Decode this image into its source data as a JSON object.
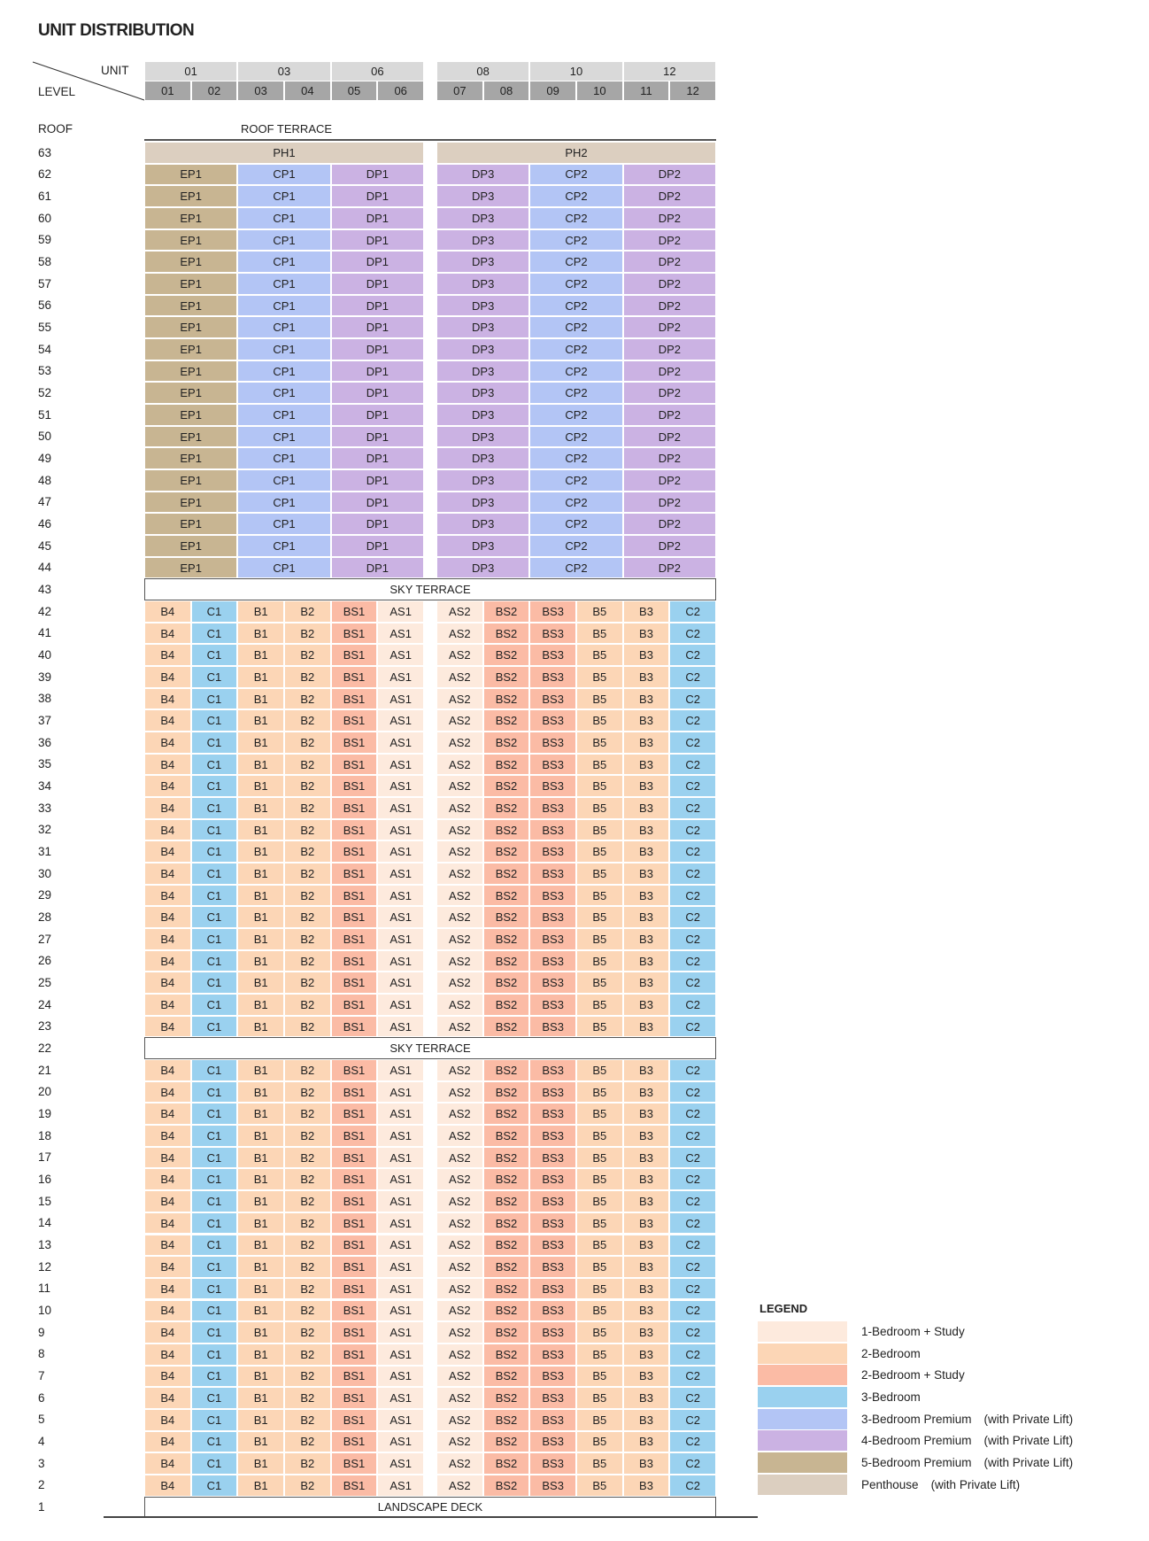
{
  "title": "UNIT DISTRIBUTION",
  "header": {
    "unit_label": "UNIT",
    "level_label": "LEVEL",
    "groups": [
      "01",
      "03",
      "06",
      "08",
      "10",
      "12"
    ],
    "units": [
      "01",
      "02",
      "03",
      "04",
      "05",
      "06",
      "07",
      "08",
      "09",
      "10",
      "11",
      "12"
    ]
  },
  "roof": {
    "level": "ROOF",
    "label": "ROOF TERRACE"
  },
  "penthouse": {
    "level": "63",
    "units": [
      {
        "label": "PH1",
        "type": "penthouse"
      },
      {
        "label": "PH2",
        "type": "penthouse"
      }
    ]
  },
  "upper": {
    "levels": [
      "62",
      "61",
      "60",
      "59",
      "58",
      "57",
      "56",
      "55",
      "54",
      "53",
      "52",
      "51",
      "50",
      "49",
      "48",
      "47",
      "46",
      "45",
      "44"
    ],
    "units": [
      {
        "label": "EP1",
        "type": "bed5p"
      },
      {
        "label": "CP1",
        "type": "bed3p"
      },
      {
        "label": "DP1",
        "type": "bed4p"
      },
      {
        "label": "DP3",
        "type": "bed4p"
      },
      {
        "label": "CP2",
        "type": "bed3p"
      },
      {
        "label": "DP2",
        "type": "bed4p"
      }
    ]
  },
  "sky_terraces": [
    {
      "level": "43",
      "label": "SKY TERRACE"
    },
    {
      "level": "22",
      "label": "SKY TERRACE"
    }
  ],
  "lower": {
    "levels": [
      "42",
      "41",
      "40",
      "39",
      "38",
      "37",
      "36",
      "35",
      "34",
      "33",
      "32",
      "31",
      "30",
      "29",
      "28",
      "27",
      "26",
      "25",
      "24",
      "23",
      "21",
      "20",
      "19",
      "18",
      "17",
      "16",
      "15",
      "14",
      "13",
      "12",
      "11",
      "10",
      "9",
      "8",
      "7",
      "6",
      "5",
      "4",
      "3",
      "2"
    ],
    "units": [
      {
        "label": "B4",
        "type": "bed2"
      },
      {
        "label": "C1",
        "type": "bed3"
      },
      {
        "label": "B1",
        "type": "bed2"
      },
      {
        "label": "B2",
        "type": "bed2"
      },
      {
        "label": "BS1",
        "type": "bed2s"
      },
      {
        "label": "AS1",
        "type": "bed1s"
      },
      {
        "label": "AS2",
        "type": "bed1s"
      },
      {
        "label": "BS2",
        "type": "bed2s"
      },
      {
        "label": "BS3",
        "type": "bed2s"
      },
      {
        "label": "B5",
        "type": "bed2"
      },
      {
        "label": "B3",
        "type": "bed2"
      },
      {
        "label": "C2",
        "type": "bed3"
      }
    ]
  },
  "ground": {
    "level": "1",
    "label": "LANDSCAPE DECK"
  },
  "colors": {
    "bed1s": "#fdeadd",
    "bed2": "#fcd6b6",
    "bed2s": "#fbbba5",
    "bed3": "#9ad1ef",
    "bed3p": "#b3c5f5",
    "bed4p": "#cbb2e3",
    "bed5p": "#c8b592",
    "penthouse": "#dccfc0",
    "header_light": "#d9d9d9",
    "header_dark": "#a6a6a6"
  },
  "legend": {
    "title": "LEGEND",
    "items": [
      {
        "label": "1-Bedroom + Study",
        "note": "",
        "type": "bed1s"
      },
      {
        "label": "2-Bedroom",
        "note": "",
        "type": "bed2"
      },
      {
        "label": "2-Bedroom + Study",
        "note": "",
        "type": "bed2s"
      },
      {
        "label": "3-Bedroom",
        "note": "",
        "type": "bed3"
      },
      {
        "label": "3-Bedroom Premium",
        "note": "(with Private Lift)",
        "type": "bed3p"
      },
      {
        "label": "4-Bedroom Premium",
        "note": "(with Private Lift)",
        "type": "bed4p"
      },
      {
        "label": "5-Bedroom Premium",
        "note": "(with Private Lift)",
        "type": "bed5p"
      },
      {
        "label": "Penthouse",
        "note": "(with Private Lift)",
        "type": "penthouse"
      }
    ]
  }
}
